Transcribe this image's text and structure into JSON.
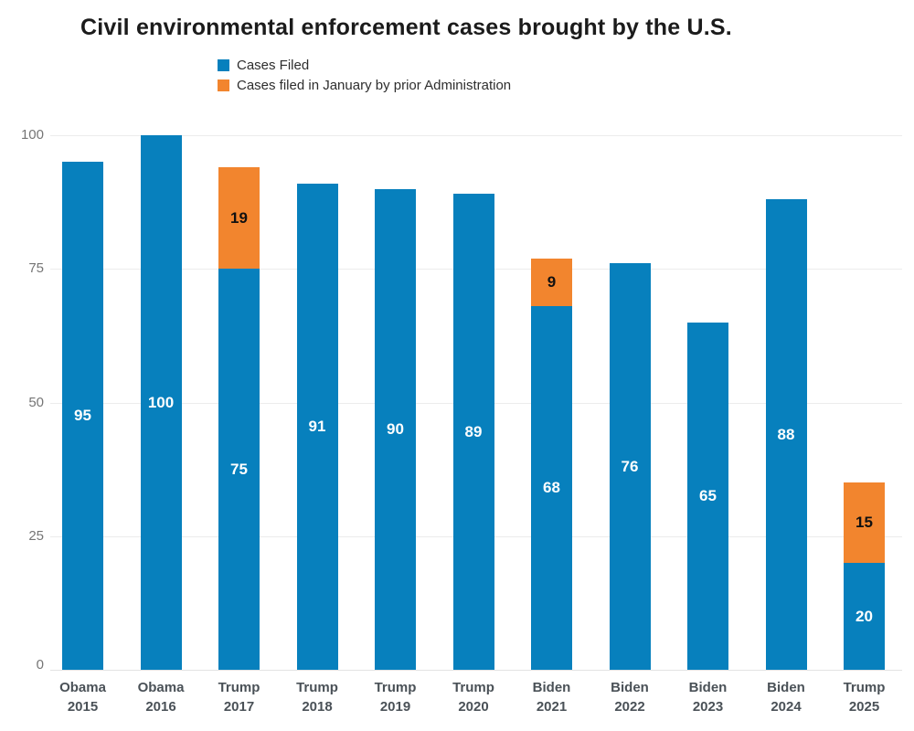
{
  "title": "Civil environmental enforcement cases brought by the U.S.",
  "colors": {
    "cases_filed": "#0780bd",
    "prior_admin_january": "#f2852e",
    "grid": "#ececec",
    "title_text": "#1b1b1b",
    "axis_tick_text": "#757575",
    "category_text": "#4a5157",
    "value_on_blue": "#ffffff",
    "value_on_orange": "#111111"
  },
  "legend": {
    "position": "top-left",
    "items": [
      {
        "label": "Cases Filed",
        "color": "#0780bd"
      },
      {
        "label": "Cases filed in January by prior Administration",
        "color": "#f2852e"
      }
    ]
  },
  "chart_data": {
    "type": "bar",
    "stacked": true,
    "title": "Civil environmental enforcement cases brought by the U.S.",
    "xlabel": "",
    "ylabel": "",
    "ylim": [
      0,
      100
    ],
    "yticks": [
      0,
      25,
      50,
      75,
      100
    ],
    "grid": true,
    "legend_position": "top-left",
    "categories": [
      "Obama\n2015",
      "Obama\n2016",
      "Trump\n2017",
      "Trump\n2018",
      "Trump\n2019",
      "Trump\n2020",
      "Biden\n2021",
      "Biden\n2022",
      "Biden\n2023",
      "Biden\n2024",
      "Trump\n2025"
    ],
    "series": [
      {
        "name": "Cases Filed",
        "color": "#0780bd",
        "values": [
          95,
          100,
          75,
          91,
          90,
          89,
          68,
          76,
          65,
          88,
          20
        ]
      },
      {
        "name": "Cases filed in January by prior Administration",
        "color": "#f2852e",
        "values": [
          0,
          0,
          19,
          0,
          0,
          0,
          9,
          0,
          0,
          0,
          15
        ]
      }
    ]
  }
}
